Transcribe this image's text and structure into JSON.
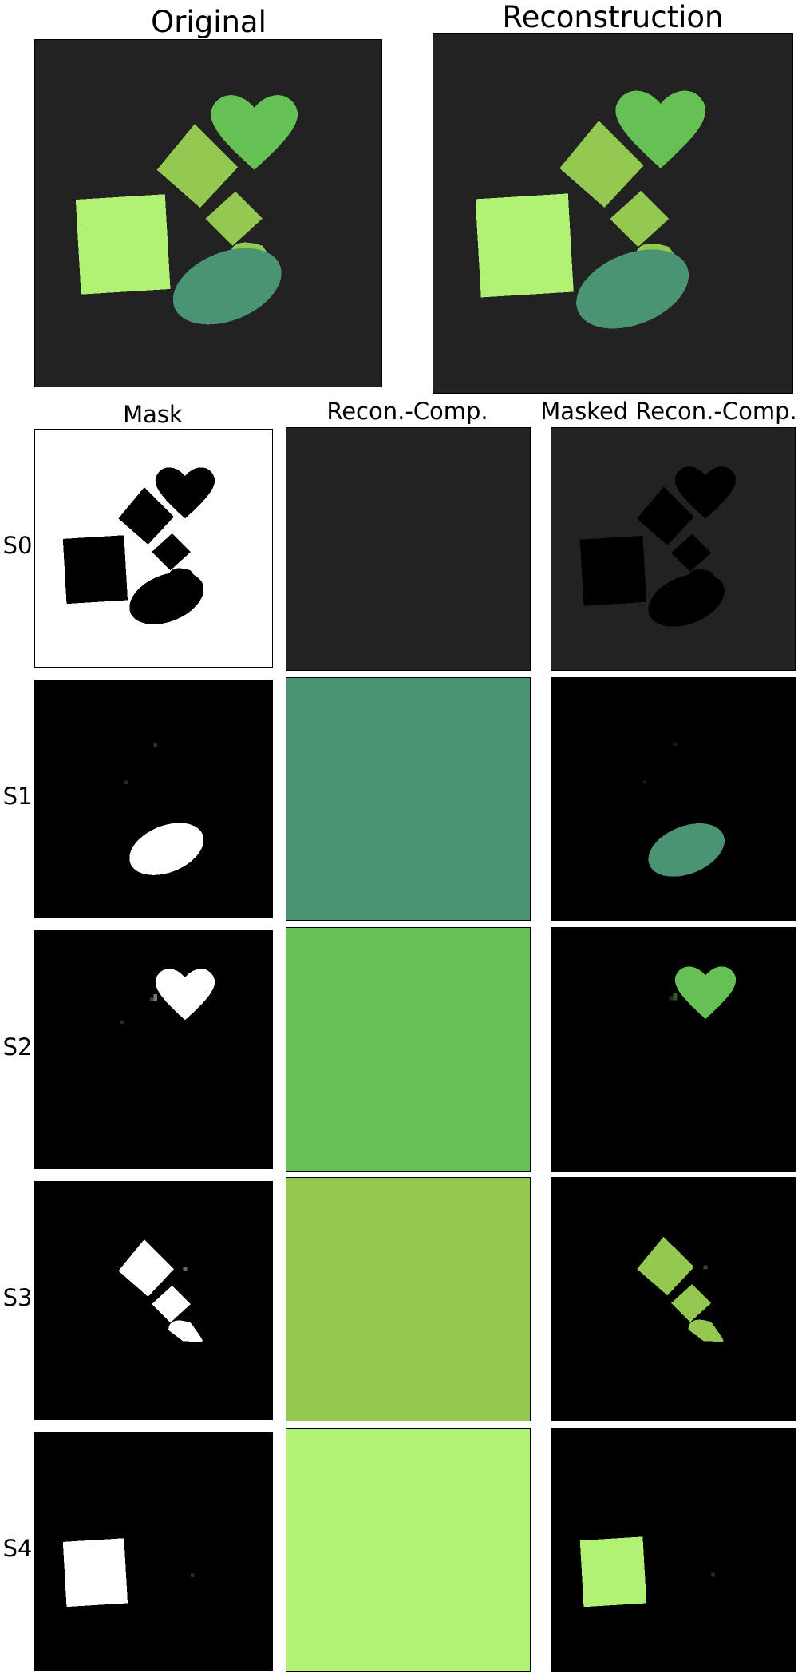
{
  "header": {
    "original_title": "Original",
    "reconstruction_title": "Reconstruction"
  },
  "columns": {
    "mask": "Mask",
    "recon_comp": "Recon.-Comp.",
    "masked_recon_comp": "Masked Recon.-Comp."
  },
  "rows": [
    {
      "label": "S0",
      "component_color": "#222222",
      "shape": "background"
    },
    {
      "label": "S1",
      "component_color": "#4a9474",
      "shape": "ellipse"
    },
    {
      "label": "S2",
      "component_color": "#66c155",
      "shape": "heart"
    },
    {
      "label": "S3",
      "component_color": "#93c950",
      "shape": "diamonds"
    },
    {
      "label": "S4",
      "component_color": "#b1f174",
      "shape": "square"
    }
  ],
  "colors": {
    "background": "#222222",
    "ellipse": "#4a9474",
    "heart": "#66c155",
    "diamond": "#93c950",
    "square": "#b1f174",
    "mask_on": "#ffffff",
    "mask_off": "#000000"
  }
}
